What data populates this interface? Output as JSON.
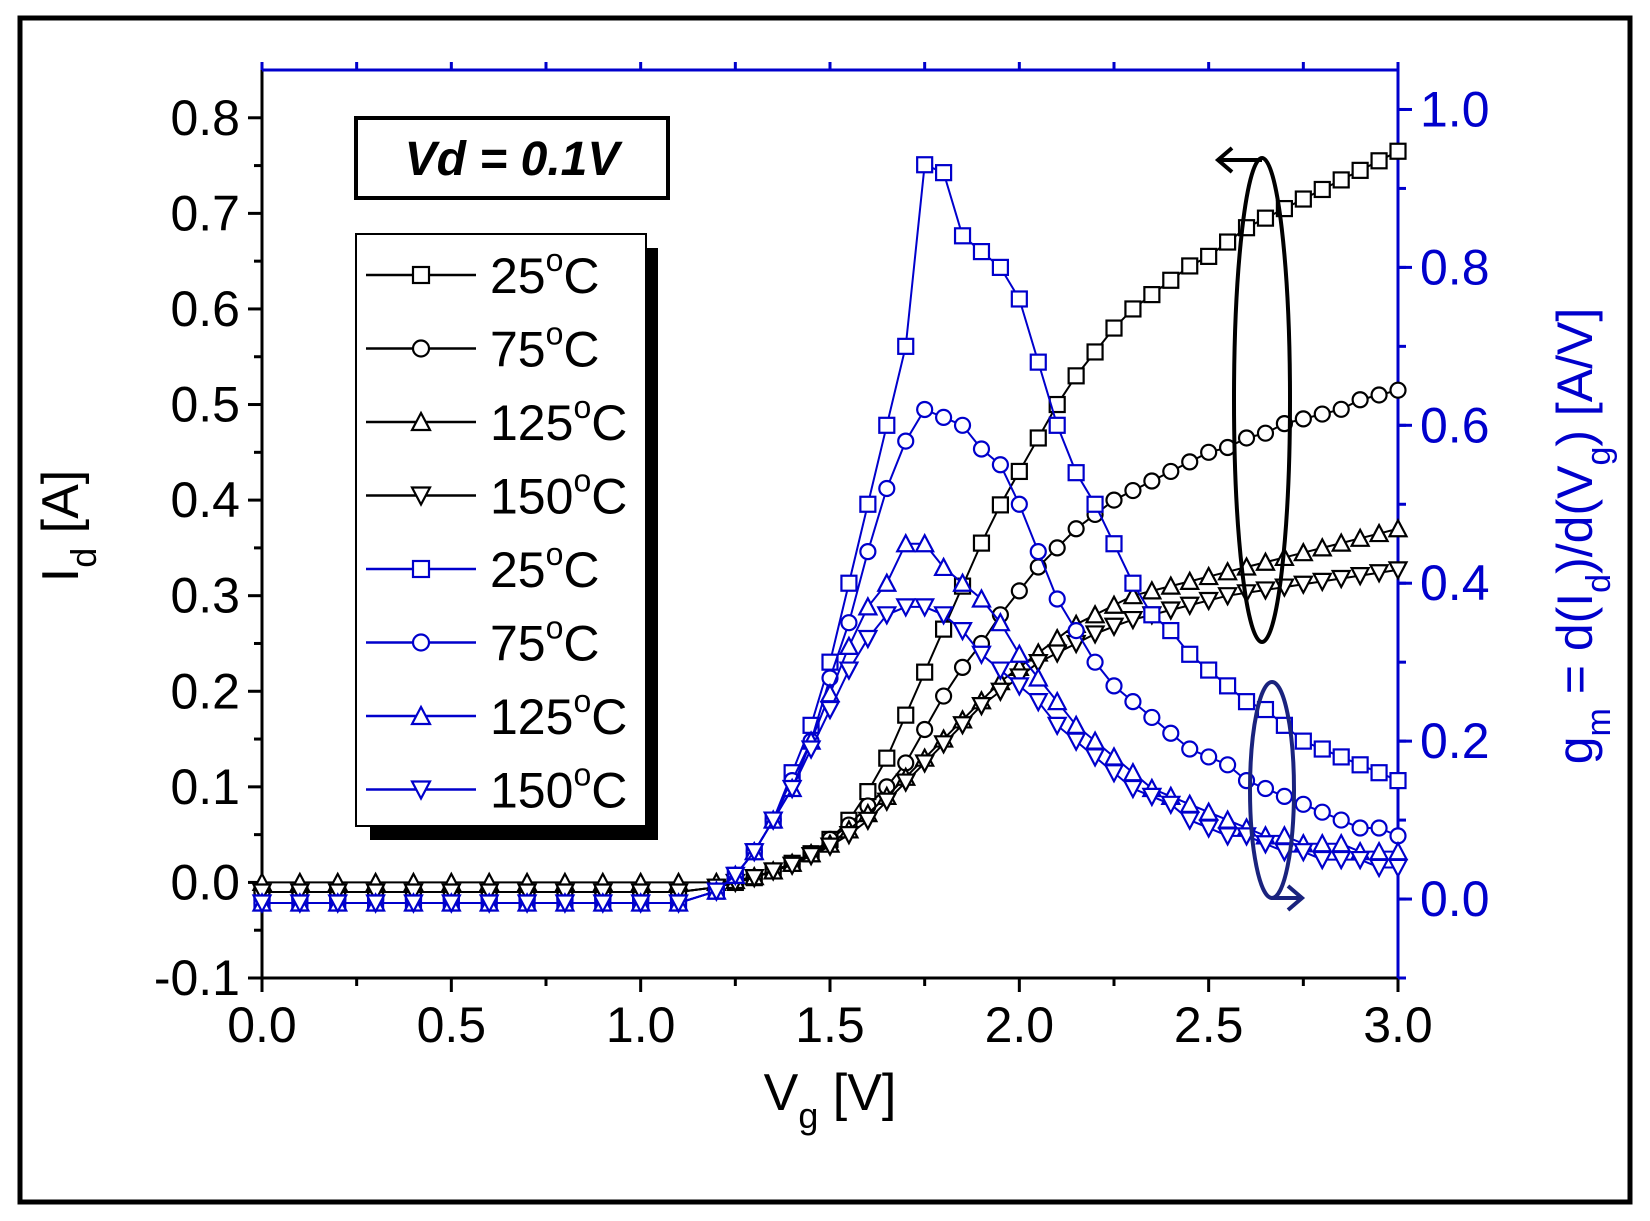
{
  "chart_data": {
    "type": "line",
    "annotation": "Vd = 0.1V",
    "x_axis": {
      "label_main": "V",
      "label_sub": "g",
      "label_unit": " [V]",
      "range": [
        0,
        3.0
      ],
      "ticks": [
        "0.0",
        "0.5",
        "1.0",
        "1.5",
        "2.0",
        "2.5",
        "3.0"
      ]
    },
    "y_left": {
      "label_main": "I",
      "label_sub": "d",
      "label_unit": " [A]",
      "range": [
        -0.1,
        0.85
      ],
      "ticks": [
        "-0.1",
        "0.0",
        "0.1",
        "0.2",
        "0.3",
        "0.4",
        "0.5",
        "0.6",
        "0.7",
        "0.8"
      ],
      "color": "#000000"
    },
    "y_right": {
      "label_parts": [
        "g",
        "m",
        " = d(I",
        "d",
        ")/d(V",
        "g",
        ") [A/V]"
      ],
      "range": [
        -0.1,
        1.05
      ],
      "ticks": [
        "0.0",
        "0.2",
        "0.4",
        "0.6",
        "0.8",
        "1.0"
      ],
      "color": "#0000cc"
    },
    "legend": {
      "degree": "o",
      "unit": "C",
      "entries": [
        {
          "temp": "25",
          "marker": "square",
          "color": "#000000",
          "axis": "left"
        },
        {
          "temp": "75",
          "marker": "circle",
          "color": "#000000",
          "axis": "left"
        },
        {
          "temp": "125",
          "marker": "triangle-up",
          "color": "#000000",
          "axis": "left"
        },
        {
          "temp": "150",
          "marker": "triangle-down",
          "color": "#000000",
          "axis": "left"
        },
        {
          "temp": "25",
          "marker": "square",
          "color": "#0000cc",
          "axis": "right"
        },
        {
          "temp": "75",
          "marker": "circle",
          "color": "#0000cc",
          "axis": "right"
        },
        {
          "temp": "125",
          "marker": "triangle-up",
          "color": "#0000cc",
          "axis": "right"
        },
        {
          "temp": "150",
          "marker": "triangle-down",
          "color": "#0000cc",
          "axis": "right"
        }
      ]
    },
    "series": [
      {
        "name": "Id 25C",
        "axis": "left",
        "marker": "square",
        "color": "#000000",
        "x": [
          0,
          0.1,
          0.2,
          0.3,
          0.4,
          0.5,
          0.6,
          0.7,
          0.8,
          0.9,
          1.0,
          1.1,
          1.2,
          1.25,
          1.3,
          1.35,
          1.4,
          1.45,
          1.5,
          1.55,
          1.6,
          1.65,
          1.7,
          1.75,
          1.8,
          1.85,
          1.9,
          1.95,
          2.0,
          2.05,
          2.1,
          2.15,
          2.2,
          2.25,
          2.3,
          2.35,
          2.4,
          2.45,
          2.5,
          2.55,
          2.6,
          2.65,
          2.7,
          2.75,
          2.8,
          2.85,
          2.9,
          2.95,
          3.0
        ],
        "y": [
          -0.01,
          -0.01,
          -0.01,
          -0.01,
          -0.01,
          -0.01,
          -0.01,
          -0.01,
          -0.01,
          -0.01,
          -0.01,
          -0.01,
          -0.005,
          0.0,
          0.005,
          0.012,
          0.02,
          0.03,
          0.045,
          0.065,
          0.095,
          0.13,
          0.175,
          0.22,
          0.265,
          0.31,
          0.355,
          0.395,
          0.43,
          0.465,
          0.5,
          0.53,
          0.555,
          0.58,
          0.6,
          0.615,
          0.63,
          0.645,
          0.655,
          0.67,
          0.685,
          0.695,
          0.705,
          0.715,
          0.725,
          0.735,
          0.745,
          0.755,
          0.765
        ]
      },
      {
        "name": "Id 75C",
        "axis": "left",
        "marker": "circle",
        "color": "#000000",
        "x": [
          0,
          0.1,
          0.2,
          0.3,
          0.4,
          0.5,
          0.6,
          0.7,
          0.8,
          0.9,
          1.0,
          1.1,
          1.2,
          1.25,
          1.3,
          1.35,
          1.4,
          1.45,
          1.5,
          1.55,
          1.6,
          1.65,
          1.7,
          1.75,
          1.8,
          1.85,
          1.9,
          1.95,
          2.0,
          2.05,
          2.1,
          2.15,
          2.2,
          2.25,
          2.3,
          2.35,
          2.4,
          2.45,
          2.5,
          2.55,
          2.6,
          2.65,
          2.7,
          2.75,
          2.8,
          2.85,
          2.9,
          2.95,
          3.0
        ],
        "y": [
          -0.01,
          -0.01,
          -0.01,
          -0.01,
          -0.01,
          -0.01,
          -0.01,
          -0.01,
          -0.01,
          -0.01,
          -0.01,
          -0.01,
          -0.005,
          0.0,
          0.005,
          0.012,
          0.02,
          0.03,
          0.045,
          0.06,
          0.08,
          0.1,
          0.125,
          0.16,
          0.195,
          0.225,
          0.25,
          0.28,
          0.305,
          0.33,
          0.35,
          0.37,
          0.385,
          0.4,
          0.41,
          0.42,
          0.43,
          0.44,
          0.45,
          0.455,
          0.465,
          0.47,
          0.48,
          0.485,
          0.49,
          0.495,
          0.505,
          0.51,
          0.515
        ]
      },
      {
        "name": "Id 125C",
        "axis": "left",
        "marker": "triangle-up",
        "color": "#000000",
        "x": [
          0,
          0.1,
          0.2,
          0.3,
          0.4,
          0.5,
          0.6,
          0.7,
          0.8,
          0.9,
          1.0,
          1.1,
          1.2,
          1.25,
          1.3,
          1.35,
          1.4,
          1.45,
          1.5,
          1.55,
          1.6,
          1.65,
          1.7,
          1.75,
          1.8,
          1.85,
          1.9,
          1.95,
          2.0,
          2.05,
          2.1,
          2.15,
          2.2,
          2.25,
          2.3,
          2.35,
          2.4,
          2.45,
          2.5,
          2.55,
          2.6,
          2.65,
          2.7,
          2.75,
          2.8,
          2.85,
          2.9,
          2.95,
          3.0
        ],
        "y": [
          0.0,
          0.0,
          0.0,
          0.0,
          0.0,
          0.0,
          0.0,
          0.0,
          0.0,
          0.0,
          0.0,
          0.0,
          0.0,
          0.002,
          0.006,
          0.012,
          0.02,
          0.03,
          0.04,
          0.055,
          0.072,
          0.09,
          0.11,
          0.13,
          0.15,
          0.17,
          0.19,
          0.21,
          0.225,
          0.24,
          0.255,
          0.27,
          0.28,
          0.29,
          0.3,
          0.305,
          0.31,
          0.315,
          0.32,
          0.325,
          0.33,
          0.335,
          0.34,
          0.345,
          0.35,
          0.355,
          0.36,
          0.365,
          0.37
        ]
      },
      {
        "name": "Id 150C",
        "axis": "left",
        "marker": "triangle-down",
        "color": "#000000",
        "x": [
          0,
          0.1,
          0.2,
          0.3,
          0.4,
          0.5,
          0.6,
          0.7,
          0.8,
          0.9,
          1.0,
          1.1,
          1.2,
          1.25,
          1.3,
          1.35,
          1.4,
          1.45,
          1.5,
          1.55,
          1.6,
          1.65,
          1.7,
          1.75,
          1.8,
          1.85,
          1.9,
          1.95,
          2.0,
          2.05,
          2.1,
          2.15,
          2.2,
          2.25,
          2.3,
          2.35,
          2.4,
          2.45,
          2.5,
          2.55,
          2.6,
          2.65,
          2.7,
          2.75,
          2.8,
          2.85,
          2.9,
          2.95,
          3.0
        ],
        "y": [
          -0.01,
          -0.01,
          -0.01,
          -0.01,
          -0.01,
          -0.01,
          -0.01,
          -0.01,
          -0.01,
          -0.01,
          -0.01,
          -0.01,
          -0.005,
          0.0,
          0.005,
          0.012,
          0.018,
          0.028,
          0.038,
          0.05,
          0.065,
          0.085,
          0.105,
          0.125,
          0.145,
          0.165,
          0.185,
          0.2,
          0.215,
          0.23,
          0.24,
          0.25,
          0.26,
          0.268,
          0.275,
          0.28,
          0.285,
          0.29,
          0.295,
          0.3,
          0.303,
          0.306,
          0.309,
          0.312,
          0.315,
          0.318,
          0.321,
          0.324,
          0.327
        ]
      },
      {
        "name": "gm 25C",
        "axis": "right",
        "marker": "square",
        "color": "#0000cc",
        "x": [
          0,
          0.1,
          0.2,
          0.3,
          0.4,
          0.5,
          0.6,
          0.7,
          0.8,
          0.9,
          1.0,
          1.1,
          1.2,
          1.25,
          1.3,
          1.35,
          1.4,
          1.45,
          1.5,
          1.55,
          1.6,
          1.65,
          1.7,
          1.75,
          1.8,
          1.85,
          1.9,
          1.95,
          2.0,
          2.05,
          2.1,
          2.15,
          2.2,
          2.25,
          2.3,
          2.35,
          2.4,
          2.45,
          2.5,
          2.55,
          2.6,
          2.65,
          2.7,
          2.75,
          2.8,
          2.85,
          2.9,
          2.95,
          3.0
        ],
        "y": [
          -0.005,
          -0.005,
          -0.005,
          -0.005,
          -0.005,
          -0.005,
          -0.005,
          -0.005,
          -0.005,
          -0.005,
          -0.005,
          -0.005,
          0.01,
          0.03,
          0.06,
          0.1,
          0.16,
          0.22,
          0.3,
          0.4,
          0.5,
          0.6,
          0.7,
          0.93,
          0.92,
          0.84,
          0.82,
          0.8,
          0.76,
          0.68,
          0.6,
          0.54,
          0.5,
          0.45,
          0.4,
          0.36,
          0.34,
          0.31,
          0.29,
          0.27,
          0.25,
          0.24,
          0.22,
          0.2,
          0.19,
          0.18,
          0.17,
          0.16,
          0.15
        ]
      },
      {
        "name": "gm 75C",
        "axis": "right",
        "marker": "circle",
        "color": "#0000cc",
        "x": [
          0,
          0.1,
          0.2,
          0.3,
          0.4,
          0.5,
          0.6,
          0.7,
          0.8,
          0.9,
          1.0,
          1.1,
          1.2,
          1.25,
          1.3,
          1.35,
          1.4,
          1.45,
          1.5,
          1.55,
          1.6,
          1.65,
          1.7,
          1.75,
          1.8,
          1.85,
          1.9,
          1.95,
          2.0,
          2.05,
          2.1,
          2.15,
          2.2,
          2.25,
          2.3,
          2.35,
          2.4,
          2.45,
          2.5,
          2.55,
          2.6,
          2.65,
          2.7,
          2.75,
          2.8,
          2.85,
          2.9,
          2.95,
          3.0
        ],
        "y": [
          -0.005,
          -0.005,
          -0.005,
          -0.005,
          -0.005,
          -0.005,
          -0.005,
          -0.005,
          -0.005,
          -0.005,
          -0.005,
          -0.005,
          0.01,
          0.03,
          0.06,
          0.1,
          0.15,
          0.2,
          0.28,
          0.35,
          0.44,
          0.52,
          0.58,
          0.62,
          0.61,
          0.6,
          0.57,
          0.55,
          0.5,
          0.44,
          0.38,
          0.34,
          0.3,
          0.27,
          0.25,
          0.23,
          0.21,
          0.19,
          0.18,
          0.17,
          0.15,
          0.14,
          0.13,
          0.12,
          0.11,
          0.1,
          0.09,
          0.09,
          0.08
        ]
      },
      {
        "name": "gm 125C",
        "axis": "right",
        "marker": "triangle-up",
        "color": "#0000cc",
        "x": [
          0,
          0.1,
          0.2,
          0.3,
          0.4,
          0.5,
          0.6,
          0.7,
          0.8,
          0.9,
          1.0,
          1.1,
          1.2,
          1.25,
          1.3,
          1.35,
          1.4,
          1.45,
          1.5,
          1.55,
          1.6,
          1.65,
          1.7,
          1.75,
          1.8,
          1.85,
          1.9,
          1.95,
          2.0,
          2.05,
          2.1,
          2.15,
          2.2,
          2.25,
          2.3,
          2.35,
          2.4,
          2.45,
          2.5,
          2.55,
          2.6,
          2.65,
          2.7,
          2.75,
          2.8,
          2.85,
          2.9,
          2.95,
          3.0
        ],
        "y": [
          -0.005,
          -0.005,
          -0.005,
          -0.005,
          -0.005,
          -0.005,
          -0.005,
          -0.005,
          -0.005,
          -0.005,
          -0.005,
          -0.005,
          0.01,
          0.03,
          0.06,
          0.1,
          0.14,
          0.2,
          0.26,
          0.32,
          0.37,
          0.4,
          0.45,
          0.45,
          0.42,
          0.4,
          0.38,
          0.35,
          0.31,
          0.28,
          0.25,
          0.22,
          0.2,
          0.18,
          0.16,
          0.14,
          0.13,
          0.12,
          0.11,
          0.1,
          0.09,
          0.08,
          0.08,
          0.07,
          0.07,
          0.07,
          0.06,
          0.06,
          0.06
        ]
      },
      {
        "name": "gm 150C",
        "axis": "right",
        "marker": "triangle-down",
        "color": "#0000cc",
        "x": [
          0,
          0.1,
          0.2,
          0.3,
          0.4,
          0.5,
          0.6,
          0.7,
          0.8,
          0.9,
          1.0,
          1.1,
          1.2,
          1.25,
          1.3,
          1.35,
          1.4,
          1.45,
          1.5,
          1.55,
          1.6,
          1.65,
          1.7,
          1.75,
          1.8,
          1.85,
          1.9,
          1.95,
          2.0,
          2.05,
          2.1,
          2.15,
          2.2,
          2.25,
          2.3,
          2.35,
          2.4,
          2.45,
          2.5,
          2.55,
          2.6,
          2.65,
          2.7,
          2.75,
          2.8,
          2.85,
          2.9,
          2.95,
          3.0
        ],
        "y": [
          -0.005,
          -0.005,
          -0.005,
          -0.005,
          -0.005,
          -0.005,
          -0.005,
          -0.005,
          -0.005,
          -0.005,
          -0.005,
          -0.005,
          0.01,
          0.03,
          0.06,
          0.1,
          0.14,
          0.19,
          0.24,
          0.29,
          0.33,
          0.36,
          0.37,
          0.37,
          0.36,
          0.34,
          0.31,
          0.29,
          0.27,
          0.25,
          0.22,
          0.2,
          0.18,
          0.16,
          0.14,
          0.13,
          0.12,
          0.1,
          0.09,
          0.08,
          0.08,
          0.07,
          0.06,
          0.06,
          0.05,
          0.05,
          0.05,
          0.04,
          0.04
        ]
      }
    ]
  }
}
